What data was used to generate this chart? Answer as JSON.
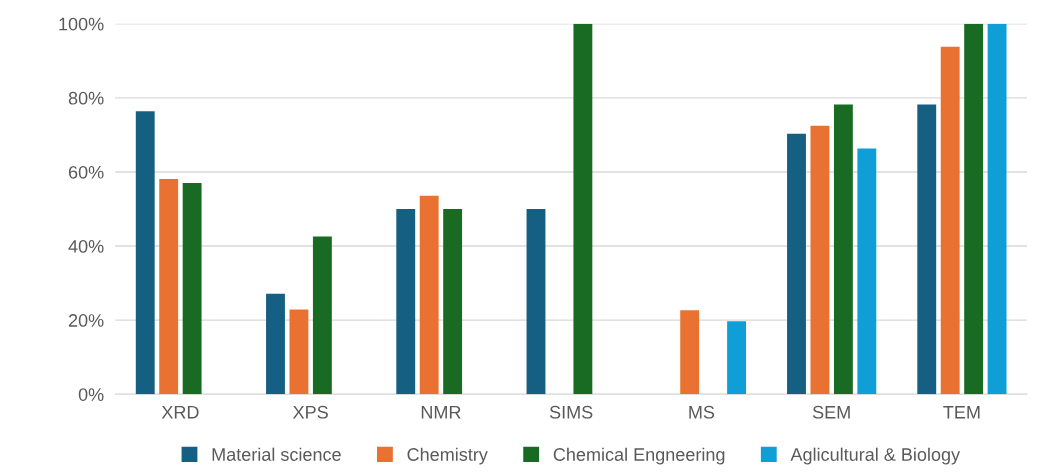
{
  "chart_data": {
    "type": "bar",
    "categories": [
      "XRD",
      "XPS",
      "NMR",
      "SIMS",
      "MS",
      "SEM",
      "TEM"
    ],
    "series": [
      {
        "name": "Material science",
        "color": "#156082",
        "values": [
          76.4,
          27.1,
          50,
          50,
          null,
          70.3,
          78.2
        ]
      },
      {
        "name": "Chemistry",
        "color": "#e97132",
        "values": [
          58.1,
          22.9,
          53.6,
          null,
          22.7,
          72.5,
          93.8
        ]
      },
      {
        "name": "Chemical Engneering",
        "color": "#196b24",
        "values": [
          57.0,
          42.6,
          50,
          100,
          null,
          78.2,
          100
        ]
      },
      {
        "name": "Aglicultural & Biology",
        "color": "#0f9ed5",
        "values": [
          null,
          null,
          null,
          null,
          19.7,
          66.3,
          100
        ]
      }
    ],
    "ylim": [
      0,
      100
    ],
    "yticks": [
      {
        "value": 0,
        "label": "0%"
      },
      {
        "value": 20,
        "label": "20%"
      },
      {
        "value": 40,
        "label": "40%"
      },
      {
        "value": 60,
        "label": "60%"
      },
      {
        "value": 80,
        "label": "80%"
      },
      {
        "value": 100,
        "label": "100%"
      }
    ],
    "grid": "y",
    "legend": "bottom"
  }
}
